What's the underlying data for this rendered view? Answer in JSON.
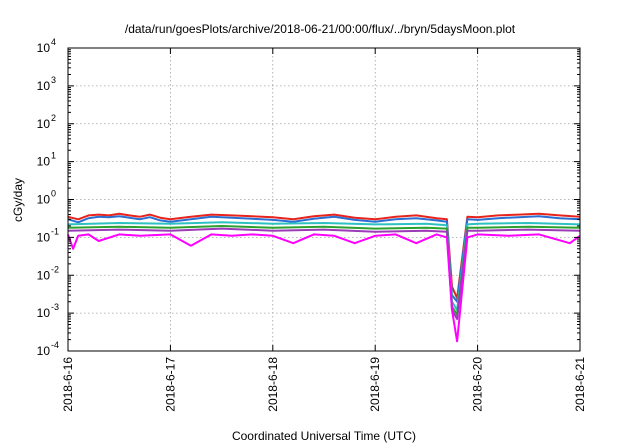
{
  "chart_data": {
    "type": "line",
    "title": "/data/run/goesPlots/archive/2018-06-21/00:00/flux/../bryn/5daysMoon.plot",
    "xlabel": "Coordinated Universal Time (UTC)",
    "ylabel": "cGy/day",
    "yscale": "log",
    "ylim": [
      0.0001,
      10000
    ],
    "xlim": [
      0,
      5
    ],
    "x_unit": "days since 2018-6-16 00:00 UTC",
    "x_ticks": [
      {
        "value": 0,
        "label": "2018-6-16"
      },
      {
        "value": 1,
        "label": "2018-6-17"
      },
      {
        "value": 2,
        "label": "2018-6-18"
      },
      {
        "value": 3,
        "label": "2018-6-19"
      },
      {
        "value": 4,
        "label": "2018-6-20"
      },
      {
        "value": 5,
        "label": "2018-6-21"
      }
    ],
    "y_ticks": [
      {
        "value": 0.0001,
        "base": "10",
        "exp": "-4"
      },
      {
        "value": 0.001,
        "base": "10",
        "exp": "-3"
      },
      {
        "value": 0.01,
        "base": "10",
        "exp": "-2"
      },
      {
        "value": 0.1,
        "base": "10",
        "exp": "-1"
      },
      {
        "value": 1,
        "base": "10",
        "exp": "0"
      },
      {
        "value": 10,
        "base": "10",
        "exp": "1"
      },
      {
        "value": 100,
        "base": "10",
        "exp": "2"
      },
      {
        "value": 1000,
        "base": "10",
        "exp": "3"
      },
      {
        "value": 10000,
        "base": "10",
        "exp": "4"
      }
    ],
    "grid": true,
    "legend": "none",
    "series": [
      {
        "color": "#e8231c",
        "values_x": [
          0,
          0.1,
          0.2,
          0.3,
          0.4,
          0.5,
          0.6,
          0.7,
          0.8,
          0.9,
          1.0,
          1.2,
          1.4,
          1.6,
          1.8,
          2.0,
          2.2,
          2.4,
          2.6,
          2.8,
          3.0,
          3.2,
          3.4,
          3.6,
          3.7,
          3.75,
          3.8,
          3.9,
          4.0,
          4.2,
          4.4,
          4.6,
          4.8,
          5.0
        ],
        "values_y": [
          0.35,
          0.3,
          0.38,
          0.4,
          0.38,
          0.42,
          0.38,
          0.35,
          0.4,
          0.33,
          0.3,
          0.35,
          0.4,
          0.38,
          0.36,
          0.34,
          0.3,
          0.36,
          0.4,
          0.33,
          0.3,
          0.35,
          0.38,
          0.32,
          0.3,
          0.005,
          0.0025,
          0.35,
          0.34,
          0.38,
          0.4,
          0.42,
          0.38,
          0.35
        ]
      },
      {
        "color": "#2a6fd1",
        "values_x": [
          0,
          0.1,
          0.2,
          0.3,
          0.4,
          0.5,
          0.6,
          0.7,
          0.8,
          0.9,
          1.0,
          1.2,
          1.4,
          1.6,
          1.8,
          2.0,
          2.2,
          2.4,
          2.6,
          2.8,
          3.0,
          3.2,
          3.4,
          3.6,
          3.7,
          3.75,
          3.8,
          3.9,
          4.0,
          4.2,
          4.4,
          4.6,
          4.8,
          5.0
        ],
        "values_y": [
          0.3,
          0.25,
          0.32,
          0.35,
          0.34,
          0.36,
          0.33,
          0.3,
          0.34,
          0.28,
          0.26,
          0.3,
          0.35,
          0.33,
          0.31,
          0.29,
          0.26,
          0.31,
          0.35,
          0.29,
          0.26,
          0.3,
          0.32,
          0.28,
          0.26,
          0.003,
          0.002,
          0.3,
          0.29,
          0.32,
          0.34,
          0.36,
          0.32,
          0.3
        ]
      },
      {
        "color": "#2ec1c1",
        "values_x": [
          0,
          0.5,
          1.0,
          1.5,
          2.0,
          2.5,
          3.0,
          3.5,
          3.7,
          3.75,
          3.8,
          3.9,
          4.0,
          4.5,
          5.0
        ],
        "values_y": [
          0.22,
          0.24,
          0.23,
          0.25,
          0.23,
          0.24,
          0.22,
          0.23,
          0.21,
          0.002,
          0.0012,
          0.22,
          0.23,
          0.24,
          0.22
        ]
      },
      {
        "color": "#2ca02c",
        "values_x": [
          0,
          0.5,
          1.0,
          1.5,
          2.0,
          2.5,
          3.0,
          3.5,
          3.7,
          3.75,
          3.8,
          3.9,
          4.0,
          4.5,
          5.0
        ],
        "values_y": [
          0.18,
          0.19,
          0.18,
          0.2,
          0.18,
          0.19,
          0.17,
          0.18,
          0.17,
          0.0015,
          0.0009,
          0.18,
          0.18,
          0.19,
          0.18
        ]
      },
      {
        "color": "#9b3bb8",
        "values_x": [
          0,
          0.5,
          1.0,
          1.5,
          2.0,
          2.5,
          3.0,
          3.5,
          3.7,
          3.75,
          3.8,
          3.9,
          4.0,
          4.5,
          5.0
        ],
        "values_y": [
          0.15,
          0.16,
          0.15,
          0.17,
          0.15,
          0.16,
          0.14,
          0.15,
          0.14,
          0.0012,
          0.0007,
          0.15,
          0.15,
          0.16,
          0.15
        ]
      },
      {
        "color": "#ff00ff",
        "values_x": [
          0,
          0.05,
          0.1,
          0.2,
          0.3,
          0.5,
          0.7,
          1.0,
          1.2,
          1.4,
          1.6,
          1.8,
          2.0,
          2.2,
          2.4,
          2.6,
          2.8,
          3.0,
          3.2,
          3.4,
          3.6,
          3.7,
          3.75,
          3.8,
          3.9,
          4.0,
          4.3,
          4.6,
          4.9,
          5.0
        ],
        "values_y": [
          0.12,
          0.05,
          0.11,
          0.12,
          0.08,
          0.12,
          0.11,
          0.12,
          0.06,
          0.12,
          0.11,
          0.12,
          0.11,
          0.07,
          0.12,
          0.11,
          0.07,
          0.11,
          0.12,
          0.07,
          0.12,
          0.1,
          0.0012,
          0.00018,
          0.1,
          0.12,
          0.11,
          0.12,
          0.07,
          0.11
        ]
      }
    ]
  }
}
